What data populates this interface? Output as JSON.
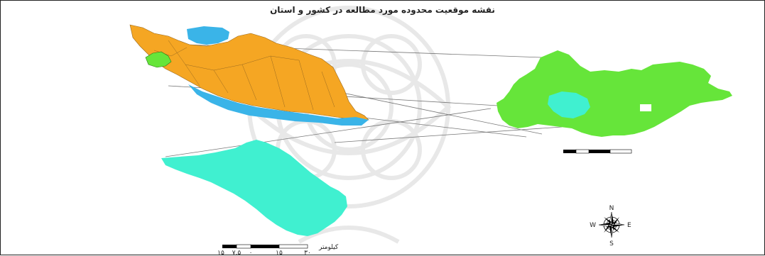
{
  "map": {
    "title": "نقشه موقعیت محدوده مورد مطالعه در کشور و استان"
  },
  "colors": {
    "country": "#f5a623",
    "water": "#3ab4e8",
    "province": "#66e53a",
    "study_area": "#40f0d0",
    "connector": "#777777"
  },
  "compass": {
    "north": "N",
    "south": "S",
    "east": "E",
    "west": "W"
  },
  "scale_bar_bottom": {
    "unit_label": "کیلومتر",
    "ticks": [
      "۱۵",
      "۷.۵",
      "۰",
      "۱۵",
      "۳۰"
    ]
  },
  "icons": {
    "compass_rose": "compass-rose-icon",
    "watermark": "ornament-watermark-icon"
  }
}
